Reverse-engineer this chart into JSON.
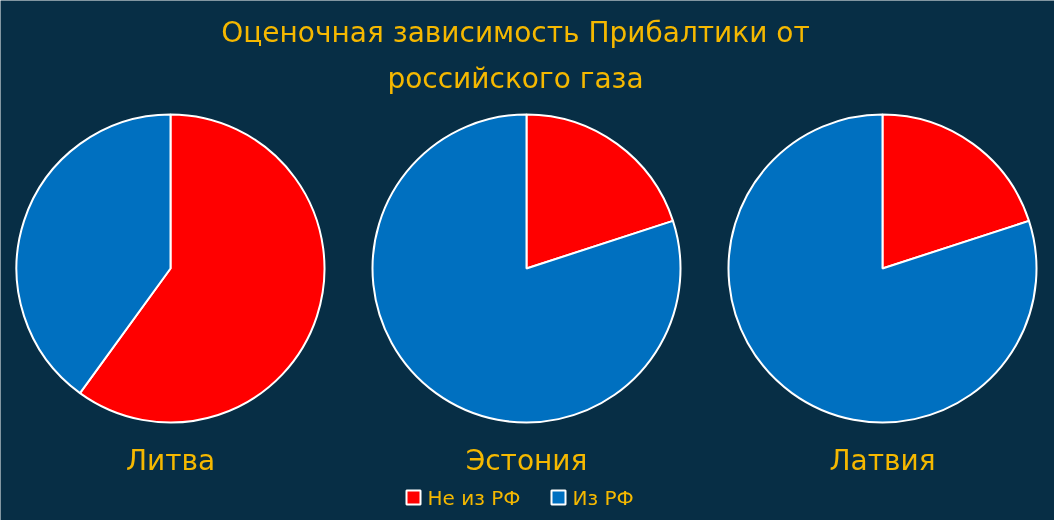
{
  "chart_data": [
    {
      "type": "pie",
      "title": "Оценочная зависимость Прибалтики от российского газа",
      "xlabel": "Литва",
      "categories": [
        "Не из РФ",
        "Из РФ"
      ],
      "values": [
        60,
        40
      ],
      "colors": [
        "#ff0000",
        "#0070c0"
      ],
      "legend": "bottom"
    },
    {
      "type": "pie",
      "xlabel": "Эстония",
      "categories": [
        null,
        null
      ],
      "values": [
        20,
        80
      ],
      "colors": [
        "#ff0000",
        "#0070c0"
      ]
    },
    {
      "type": "pie",
      "xlabel": "Латвия",
      "categories": [
        null,
        null
      ],
      "values": [
        20,
        80
      ],
      "colors": [
        "#ff0000",
        "#0070c0"
      ]
    }
  ]
}
